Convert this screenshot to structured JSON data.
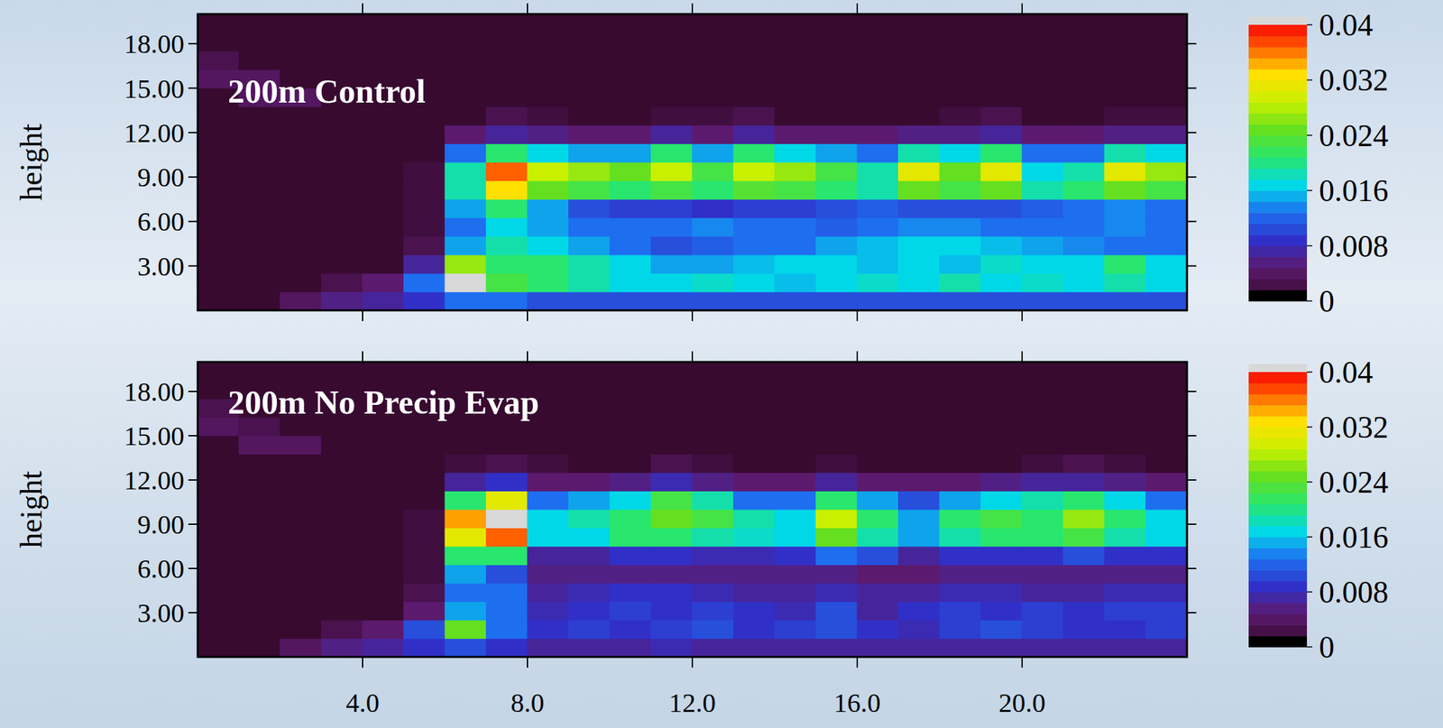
{
  "chart_data": [
    {
      "type": "heatmap",
      "title": "200m Control",
      "y_label": "height",
      "x": [
        0.5,
        1.5,
        2.5,
        3.5,
        4.5,
        5.5,
        6.5,
        7.5,
        8.5,
        9.5,
        10.5,
        11.5,
        12.5,
        13.5,
        14.5,
        15.5,
        16.5,
        17.5,
        18.5,
        19.5,
        20.5,
        21.5,
        22.5,
        23.5
      ],
      "y": [
        0.625,
        1.875,
        3.125,
        4.375,
        5.625,
        6.875,
        8.125,
        9.375,
        10.625,
        11.875,
        13.125,
        14.375,
        15.625,
        16.875,
        18.125,
        19.375
      ],
      "values": [
        [
          0,
          0,
          0.003,
          0.005,
          0.006,
          0.008,
          0.012,
          0.012,
          0.01,
          0.01,
          0.01,
          0.01,
          0.01,
          0.01,
          0.01,
          0.01,
          0.01,
          0.01,
          0.01,
          0.01,
          0.01,
          0.01,
          0.01,
          0.01
        ],
        [
          0,
          0,
          0,
          0.002,
          0.004,
          0.012,
          0.042,
          0.022,
          0.02,
          0.018,
          0.016,
          0.016,
          0.017,
          0.016,
          0.015,
          0.016,
          0.017,
          0.016,
          0.018,
          0.016,
          0.017,
          0.016,
          0.018,
          0.016
        ],
        [
          0,
          0,
          0,
          0,
          0,
          0.006,
          0.026,
          0.02,
          0.02,
          0.018,
          0.016,
          0.014,
          0.014,
          0.015,
          0.016,
          0.016,
          0.015,
          0.016,
          0.015,
          0.017,
          0.016,
          0.016,
          0.02,
          0.016
        ],
        [
          0,
          0,
          0,
          0,
          0,
          0.002,
          0.014,
          0.018,
          0.016,
          0.014,
          0.012,
          0.01,
          0.011,
          0.012,
          0.012,
          0.014,
          0.015,
          0.016,
          0.016,
          0.015,
          0.014,
          0.013,
          0.012,
          0.012
        ],
        [
          0,
          0,
          0,
          0,
          0,
          0.001,
          0.012,
          0.016,
          0.014,
          0.012,
          0.012,
          0.012,
          0.013,
          0.012,
          0.012,
          0.011,
          0.012,
          0.013,
          0.013,
          0.012,
          0.012,
          0.012,
          0.013,
          0.012
        ],
        [
          0,
          0,
          0,
          0,
          0,
          0.001,
          0.014,
          0.02,
          0.014,
          0.01,
          0.009,
          0.009,
          0.008,
          0.009,
          0.009,
          0.01,
          0.011,
          0.01,
          0.01,
          0.01,
          0.011,
          0.012,
          0.013,
          0.012
        ],
        [
          0,
          0,
          0,
          0,
          0,
          0.001,
          0.018,
          0.032,
          0.024,
          0.022,
          0.02,
          0.022,
          0.02,
          0.023,
          0.022,
          0.02,
          0.018,
          0.024,
          0.022,
          0.024,
          0.018,
          0.02,
          0.024,
          0.022
        ],
        [
          0,
          0,
          0,
          0,
          0,
          0.001,
          0.018,
          0.036,
          0.028,
          0.026,
          0.024,
          0.028,
          0.022,
          0.028,
          0.026,
          0.022,
          0.018,
          0.03,
          0.024,
          0.03,
          0.016,
          0.018,
          0.03,
          0.026
        ],
        [
          0,
          0,
          0,
          0,
          0,
          0,
          0.012,
          0.02,
          0.016,
          0.014,
          0.014,
          0.02,
          0.014,
          0.02,
          0.016,
          0.014,
          0.012,
          0.018,
          0.016,
          0.02,
          0.012,
          0.012,
          0.018,
          0.016
        ],
        [
          0,
          0,
          0,
          0,
          0,
          0,
          0.004,
          0.006,
          0.005,
          0.004,
          0.004,
          0.006,
          0.004,
          0.006,
          0.004,
          0.004,
          0.004,
          0.005,
          0.005,
          0.006,
          0.004,
          0.004,
          0.005,
          0.005
        ],
        [
          0,
          0,
          0,
          0,
          0,
          0,
          0,
          0.002,
          0.001,
          0,
          0,
          0.001,
          0.001,
          0.002,
          0,
          0,
          0,
          0,
          0.001,
          0.002,
          0,
          0,
          0.001,
          0.001
        ],
        [
          0,
          0.003,
          0.003,
          0,
          0,
          0,
          0,
          0,
          0,
          0,
          0,
          0,
          0,
          0,
          0,
          0,
          0,
          0,
          0,
          0,
          0,
          0,
          0,
          0
        ],
        [
          0.003,
          0.003,
          0,
          0,
          0,
          0,
          0,
          0,
          0,
          0,
          0,
          0,
          0,
          0,
          0,
          0,
          0,
          0,
          0,
          0,
          0,
          0,
          0,
          0
        ],
        [
          0.002,
          0,
          0,
          0,
          0,
          0,
          0,
          0,
          0,
          0,
          0,
          0,
          0,
          0,
          0,
          0,
          0,
          0,
          0,
          0,
          0,
          0,
          0,
          0
        ],
        [
          0,
          0,
          0,
          0,
          0,
          0,
          0,
          0,
          0,
          0,
          0,
          0,
          0,
          0,
          0,
          0,
          0,
          0,
          0,
          0,
          0,
          0,
          0,
          0
        ],
        [
          0,
          0,
          0,
          0,
          0,
          0,
          0,
          0,
          0,
          0,
          0,
          0,
          0,
          0,
          0,
          0,
          0,
          0,
          0,
          0,
          0,
          0,
          0,
          0
        ]
      ],
      "xlim": [
        0,
        24
      ],
      "ylim": [
        0,
        20
      ],
      "xticks": [
        4,
        8,
        12,
        16,
        20
      ],
      "yticks": [
        {
          "value": 3,
          "label": "3.00"
        },
        {
          "value": 6,
          "label": "6.00"
        },
        {
          "value": 9,
          "label": "9.00"
        },
        {
          "value": 12,
          "label": "12.00"
        },
        {
          "value": 15,
          "label": "15.00"
        },
        {
          "value": 18,
          "label": "18.00"
        }
      ],
      "tick_labels": "y",
      "colorbar": {
        "range": [
          0,
          0.04
        ],
        "ticks": [
          0,
          0.008,
          0.016,
          0.024,
          0.032,
          0.04
        ]
      }
    },
    {
      "type": "heatmap",
      "title": "200m No Precip Evap",
      "y_label": "height",
      "x": [
        0.5,
        1.5,
        2.5,
        3.5,
        4.5,
        5.5,
        6.5,
        7.5,
        8.5,
        9.5,
        10.5,
        11.5,
        12.5,
        13.5,
        14.5,
        15.5,
        16.5,
        17.5,
        18.5,
        19.5,
        20.5,
        21.5,
        22.5,
        23.5
      ],
      "y": [
        0.625,
        1.875,
        3.125,
        4.375,
        5.625,
        6.875,
        8.125,
        9.375,
        10.625,
        11.875,
        13.125,
        14.375,
        15.625,
        16.875,
        18.125,
        19.375
      ],
      "values": [
        [
          0,
          0,
          0.003,
          0.005,
          0.006,
          0.008,
          0.01,
          0.008,
          0.006,
          0.006,
          0.006,
          0.007,
          0.006,
          0.006,
          0.006,
          0.006,
          0.006,
          0.006,
          0.006,
          0.006,
          0.006,
          0.006,
          0.006,
          0.006
        ],
        [
          0,
          0,
          0,
          0.002,
          0.004,
          0.01,
          0.024,
          0.012,
          0.008,
          0.009,
          0.008,
          0.009,
          0.01,
          0.008,
          0.009,
          0.01,
          0.008,
          0.007,
          0.009,
          0.01,
          0.009,
          0.008,
          0.008,
          0.009
        ],
        [
          0,
          0,
          0,
          0,
          0,
          0.004,
          0.014,
          0.012,
          0.007,
          0.008,
          0.009,
          0.008,
          0.009,
          0.008,
          0.007,
          0.01,
          0.006,
          0.008,
          0.009,
          0.008,
          0.009,
          0.008,
          0.009,
          0.009
        ],
        [
          0,
          0,
          0,
          0,
          0,
          0.002,
          0.012,
          0.012,
          0.006,
          0.007,
          0.008,
          0.008,
          0.007,
          0.006,
          0.006,
          0.007,
          0.006,
          0.006,
          0.007,
          0.007,
          0.006,
          0.006,
          0.007,
          0.007
        ],
        [
          0,
          0,
          0,
          0,
          0,
          0.001,
          0.014,
          0.01,
          0.005,
          0.005,
          0.005,
          0.005,
          0.005,
          0.005,
          0.005,
          0.005,
          0.004,
          0.004,
          0.005,
          0.005,
          0.005,
          0.005,
          0.005,
          0.005
        ],
        [
          0,
          0,
          0,
          0,
          0,
          0.001,
          0.02,
          0.02,
          0.006,
          0.006,
          0.008,
          0.008,
          0.007,
          0.007,
          0.008,
          0.012,
          0.01,
          0.006,
          0.008,
          0.008,
          0.008,
          0.01,
          0.008,
          0.008
        ],
        [
          0,
          0,
          0,
          0,
          0,
          0.001,
          0.03,
          0.036,
          0.016,
          0.016,
          0.02,
          0.02,
          0.018,
          0.017,
          0.016,
          0.024,
          0.018,
          0.014,
          0.018,
          0.02,
          0.02,
          0.022,
          0.018,
          0.016
        ],
        [
          0,
          0,
          0,
          0,
          0,
          0.001,
          0.034,
          0.044,
          0.016,
          0.018,
          0.02,
          0.024,
          0.022,
          0.018,
          0.016,
          0.028,
          0.02,
          0.014,
          0.02,
          0.022,
          0.02,
          0.026,
          0.02,
          0.016
        ],
        [
          0,
          0,
          0,
          0,
          0,
          0,
          0.02,
          0.03,
          0.012,
          0.014,
          0.016,
          0.022,
          0.018,
          0.012,
          0.012,
          0.02,
          0.014,
          0.01,
          0.014,
          0.016,
          0.018,
          0.02,
          0.016,
          0.012
        ],
        [
          0,
          0,
          0,
          0,
          0,
          0,
          0.006,
          0.008,
          0.004,
          0.004,
          0.005,
          0.007,
          0.005,
          0.004,
          0.004,
          0.006,
          0.004,
          0.004,
          0.004,
          0.005,
          0.006,
          0.006,
          0.005,
          0.004
        ],
        [
          0,
          0,
          0,
          0,
          0,
          0,
          0.001,
          0.002,
          0.001,
          0,
          0,
          0.002,
          0.001,
          0,
          0,
          0.001,
          0,
          0,
          0,
          0,
          0.001,
          0.002,
          0.001,
          0
        ],
        [
          0,
          0.003,
          0.003,
          0,
          0,
          0,
          0,
          0,
          0,
          0,
          0,
          0,
          0,
          0,
          0,
          0,
          0,
          0,
          0,
          0,
          0,
          0,
          0,
          0
        ],
        [
          0.003,
          0.002,
          0,
          0,
          0,
          0,
          0,
          0,
          0,
          0,
          0,
          0,
          0,
          0,
          0,
          0,
          0,
          0,
          0,
          0,
          0,
          0,
          0,
          0
        ],
        [
          0.002,
          0,
          0,
          0,
          0,
          0,
          0,
          0,
          0,
          0,
          0,
          0,
          0,
          0,
          0,
          0,
          0,
          0,
          0,
          0,
          0,
          0,
          0,
          0
        ],
        [
          0,
          0,
          0,
          0,
          0,
          0,
          0,
          0,
          0,
          0,
          0,
          0,
          0,
          0,
          0,
          0,
          0,
          0,
          0,
          0,
          0,
          0,
          0,
          0
        ],
        [
          0,
          0,
          0,
          0,
          0,
          0,
          0,
          0,
          0,
          0,
          0,
          0,
          0,
          0,
          0,
          0,
          0,
          0,
          0,
          0,
          0,
          0,
          0,
          0
        ]
      ],
      "xlim": [
        0,
        24
      ],
      "ylim": [
        0,
        20
      ],
      "xticks": [
        {
          "value": 4,
          "label": "4.0"
        },
        {
          "value": 8,
          "label": "8.0"
        },
        {
          "value": 12,
          "label": "12.0"
        },
        {
          "value": 16,
          "label": "16.0"
        },
        {
          "value": 20,
          "label": "20.0"
        }
      ],
      "yticks": [
        {
          "value": 3,
          "label": "3.00"
        },
        {
          "value": 6,
          "label": "6.00"
        },
        {
          "value": 9,
          "label": "9.00"
        },
        {
          "value": 12,
          "label": "12.00"
        },
        {
          "value": 15,
          "label": "15.00"
        },
        {
          "value": 18,
          "label": "18.00"
        }
      ],
      "tick_labels": true,
      "colorbar": {
        "range": [
          0,
          0.04
        ],
        "ticks": [
          0,
          0.008,
          0.016,
          0.024,
          0.032,
          0.04
        ]
      }
    }
  ]
}
